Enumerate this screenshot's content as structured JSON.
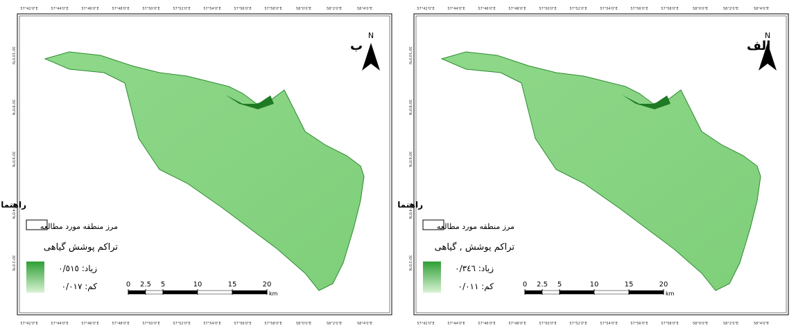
{
  "coordinates": {
    "top": [
      "57°42'0\"E",
      "57°44'0\"E",
      "57°46'0\"E",
      "57°48'0\"E",
      "57°50'0\"E",
      "57°52'0\"E",
      "57°54'0\"E",
      "57°56'0\"E",
      "57°58'0\"E",
      "58°0'0\"E",
      "58°2'0\"E",
      "58°4'0\"E"
    ],
    "left": [
      "30°10'0\"N",
      "30°8'0\"N",
      "30°6'0\"N",
      "30°4'0\"N",
      "30°2'0\"N"
    ]
  },
  "north": "N",
  "scale": {
    "ticks": [
      0,
      2.5,
      5,
      10,
      15,
      20
    ],
    "unit": "km"
  },
  "panels": [
    {
      "label": "ب",
      "legend": {
        "title": "راهنما",
        "boundary": "مرز منطقه مورد مطالعه",
        "density": "تراکم پوشش گیاهی",
        "high": "زیاد: ٠/٥١٥",
        "low": "کم: ٠/٠١٧"
      }
    },
    {
      "label": "الف",
      "legend": {
        "title": "راهنما",
        "boundary": "مرز منطقه مورد مطالعه",
        "density": "تراکم یوشش , گیاهی",
        "high": "زیاد: ٠/٣٤٦",
        "low": "کم: ٠/٠١١"
      }
    }
  ]
}
